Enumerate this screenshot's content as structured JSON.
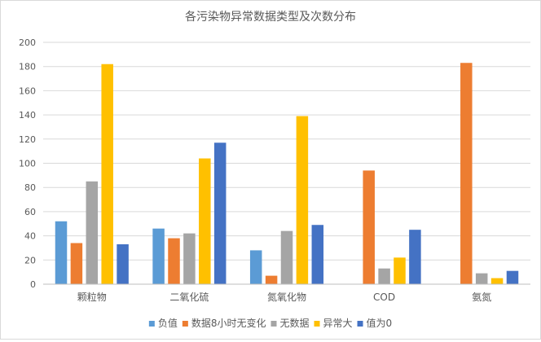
{
  "chart_data": {
    "type": "bar",
    "title": "各污染物异常数据类型及次数分布",
    "xlabel": "",
    "ylabel": "",
    "ylim": [
      0,
      200
    ],
    "yticks": [
      0,
      20,
      40,
      60,
      80,
      100,
      120,
      140,
      160,
      180,
      200
    ],
    "grid": true,
    "legend": "bottom",
    "categories": [
      "颗粒物",
      "二氧化硫",
      "氮氧化物",
      "COD",
      "氨氮"
    ],
    "series": [
      {
        "name": "负值",
        "color": "#5B9BD5",
        "values": [
          52,
          46,
          28,
          0,
          0
        ]
      },
      {
        "name": "数据8小时无变化",
        "color": "#ED7D31",
        "values": [
          34,
          38,
          7,
          94,
          183
        ]
      },
      {
        "name": "无数据",
        "color": "#A5A5A5",
        "values": [
          85,
          42,
          44,
          13,
          9
        ]
      },
      {
        "name": "异常大",
        "color": "#FFC000",
        "values": [
          182,
          104,
          139,
          22,
          5
        ]
      },
      {
        "name": "值为0",
        "color": "#4472C4",
        "values": [
          33,
          117,
          49,
          45,
          11
        ]
      }
    ]
  }
}
